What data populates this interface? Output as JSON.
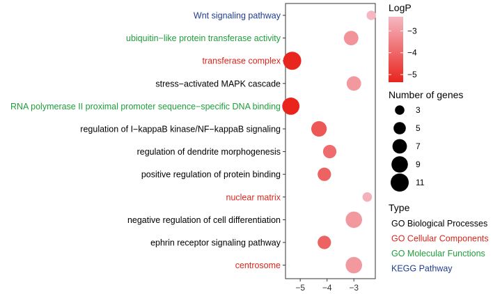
{
  "chart_data": {
    "type": "scatter",
    "xlim": [
      -5.55,
      -2.2
    ],
    "x_ticks": [
      -5,
      -4,
      -3
    ],
    "x_tick_labels": [
      "−5",
      "−4",
      "−3"
    ],
    "grid": false,
    "categories": [
      {
        "label": "Wnt signaling pathway",
        "type": "KEGG Pathway"
      },
      {
        "label": "ubiquitin−like protein transferase activity",
        "type": "GO Molecular Functions"
      },
      {
        "label": "transferase complex",
        "type": "GO Cellular Components"
      },
      {
        "label": "stress−activated MAPK cascade",
        "type": "GO Biological Processes"
      },
      {
        "label": "RNA polymerase II proximal promoter sequence−specific DNA binding",
        "type": "GO Molecular Functions"
      },
      {
        "label": "regulation of I−kappaB kinase/NF−kappaB signaling",
        "type": "GO Biological Processes"
      },
      {
        "label": "regulation of dendrite morphogenesis",
        "type": "GO Biological Processes"
      },
      {
        "label": "positive regulation of protein binding",
        "type": "GO Biological Processes"
      },
      {
        "label": "nuclear matrix",
        "type": "GO Cellular Components"
      },
      {
        "label": "negative regulation of cell differentiation",
        "type": "GO Biological Processes"
      },
      {
        "label": "ephrin receptor signaling pathway",
        "type": "GO Biological Processes"
      },
      {
        "label": "centrosome",
        "type": "GO Cellular Components"
      }
    ],
    "points": [
      {
        "logp": -2.35,
        "genes": 3
      },
      {
        "logp": -3.1,
        "genes": 7
      },
      {
        "logp": -5.3,
        "genes": 11
      },
      {
        "logp": -3.0,
        "genes": 7
      },
      {
        "logp": -5.35,
        "genes": 10
      },
      {
        "logp": -4.3,
        "genes": 8
      },
      {
        "logp": -3.9,
        "genes": 6
      },
      {
        "logp": -4.1,
        "genes": 6
      },
      {
        "logp": -2.5,
        "genes": 3
      },
      {
        "logp": -3.0,
        "genes": 9
      },
      {
        "logp": -4.1,
        "genes": 6
      },
      {
        "logp": -3.0,
        "genes": 9
      }
    ],
    "color_legend": {
      "title": "LogP",
      "min": -5.35,
      "max": -2.35,
      "ticks": [
        -3,
        -4,
        -5
      ],
      "tick_labels": [
        "−3",
        "−4",
        "−5"
      ],
      "low_color": "#e8241c",
      "high_color": "#f5b8c3"
    },
    "size_legend": {
      "title": "Number of genes",
      "values": [
        3,
        5,
        7,
        9,
        11
      ],
      "labels": [
        "3",
        "5",
        "7",
        "9",
        "11"
      ]
    },
    "type_legend": {
      "title": "Type",
      "entries": [
        {
          "label": "GO Biological Processes",
          "color": "#000000"
        },
        {
          "label": "GO Cellular Components",
          "color": "#d9261c"
        },
        {
          "label": "GO Molecular Functions",
          "color": "#1f9e3a"
        },
        {
          "label": "KEGG Pathway",
          "color": "#1f3d8f"
        }
      ]
    }
  }
}
